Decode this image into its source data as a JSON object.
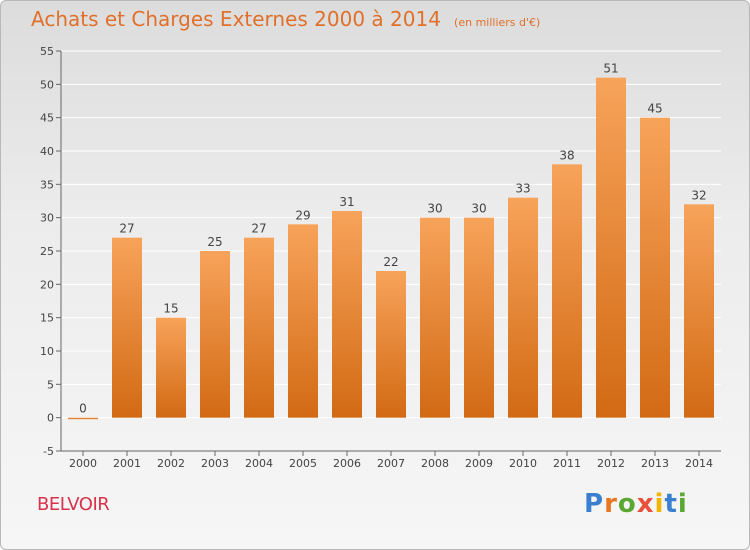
{
  "header": {
    "title": "Achats et Charges Externes 2000 à 2014",
    "subtitle": "(en milliers d'€)"
  },
  "footer": {
    "commune": "BELVOIR",
    "logo_text": "Proxiti"
  },
  "colors": {
    "bar_top": "#f7a35a",
    "bar_bottom": "#d26a14",
    "title": "#e0702a",
    "commune": "#d8324a"
  },
  "chart_data": {
    "type": "bar",
    "categories": [
      "2000",
      "2001",
      "2002",
      "2003",
      "2004",
      "2005",
      "2006",
      "2007",
      "2008",
      "2009",
      "2010",
      "2011",
      "2012",
      "2013",
      "2014"
    ],
    "values": [
      0,
      27,
      15,
      25,
      27,
      29,
      31,
      22,
      30,
      30,
      33,
      38,
      51,
      45,
      32
    ],
    "title": "Achats et Charges Externes 2000 à 2014",
    "subtitle": "(en milliers d'€)",
    "ylim": [
      -5,
      55
    ],
    "yticks": [
      -5,
      0,
      5,
      10,
      15,
      20,
      25,
      30,
      35,
      40,
      45,
      50,
      55
    ],
    "grid": true
  }
}
